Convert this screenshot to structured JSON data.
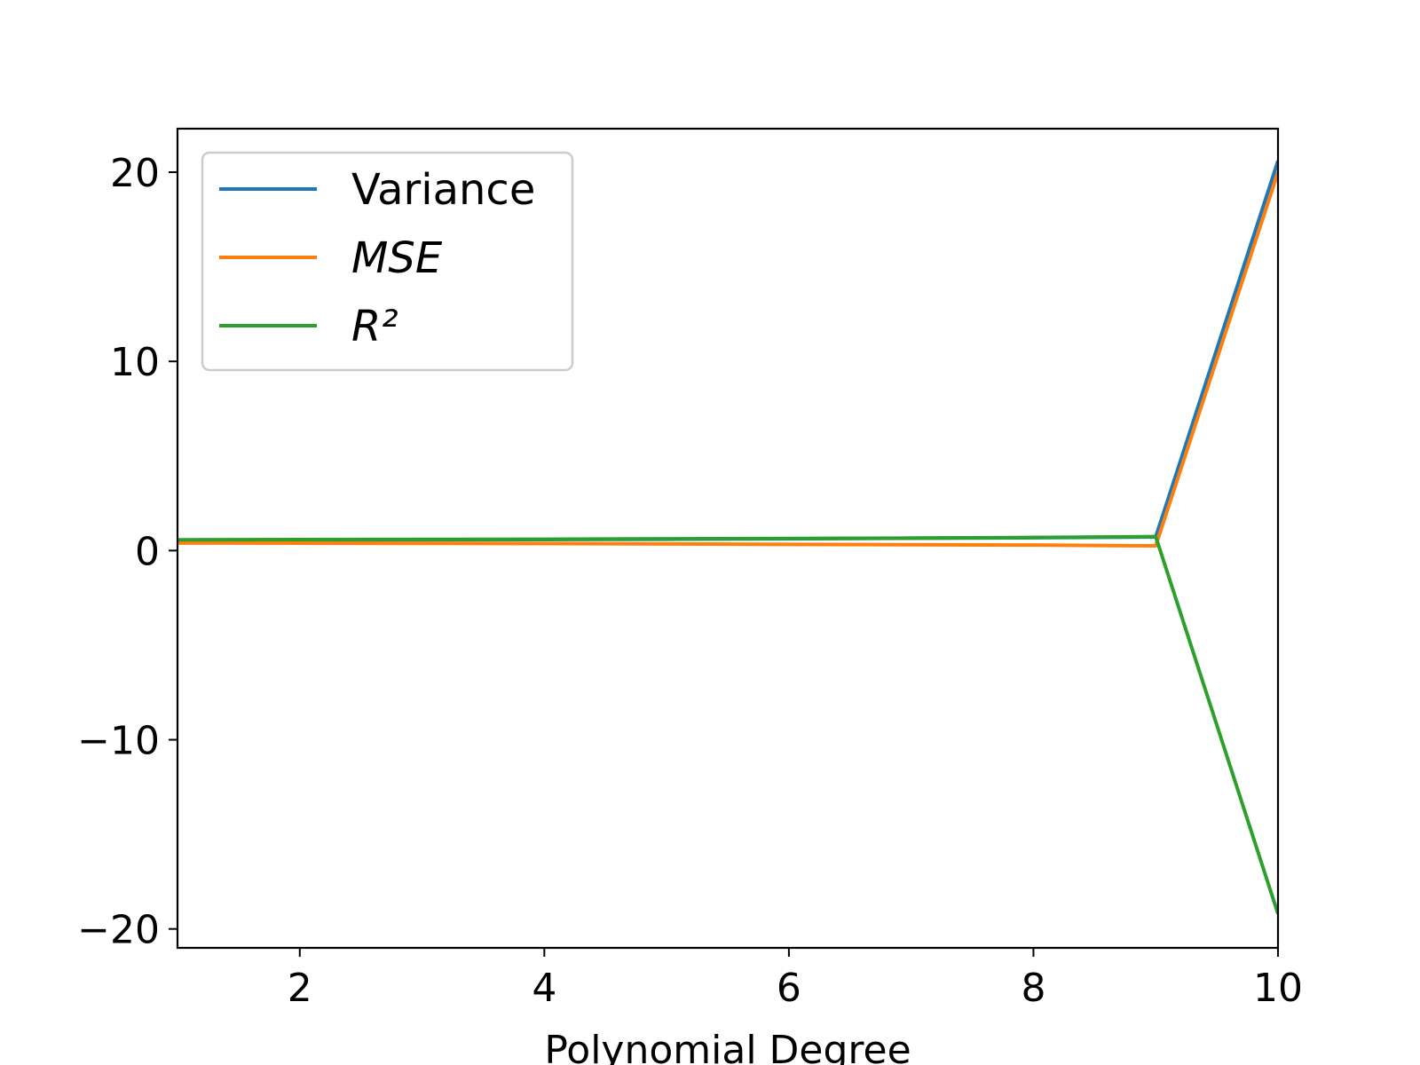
{
  "chart_data": {
    "type": "line",
    "xlabel": "Polynomial Degree",
    "ylabel": "",
    "title": "",
    "xlim": [
      1,
      10
    ],
    "ylim": [
      -21,
      22.3
    ],
    "xticks": [
      2,
      4,
      6,
      8,
      10
    ],
    "yticks": [
      -20,
      -10,
      0,
      10,
      20
    ],
    "xtick_labels": [
      "2",
      "4",
      "6",
      "8",
      "10"
    ],
    "ytick_labels": [
      "−20",
      "−10",
      "0",
      "10",
      "20"
    ],
    "grid": false,
    "legend_position": "top-left",
    "x": [
      1,
      2,
      3,
      4,
      5,
      6,
      7,
      8,
      9,
      10
    ],
    "series": [
      {
        "name": "Variance",
        "color": "#1f77b4",
        "values": [
          0.55,
          0.56,
          0.57,
          0.58,
          0.6,
          0.62,
          0.65,
          0.68,
          0.72,
          20.6
        ]
      },
      {
        "name": "MSE",
        "color": "#ff7f0e",
        "values": [
          0.4,
          0.39,
          0.38,
          0.37,
          0.35,
          0.33,
          0.31,
          0.29,
          0.25,
          20.0
        ]
      },
      {
        "name": "R²",
        "color": "#2ca02c",
        "values": [
          0.57,
          0.58,
          0.59,
          0.6,
          0.62,
          0.64,
          0.66,
          0.69,
          0.74,
          -19.2
        ]
      }
    ]
  }
}
